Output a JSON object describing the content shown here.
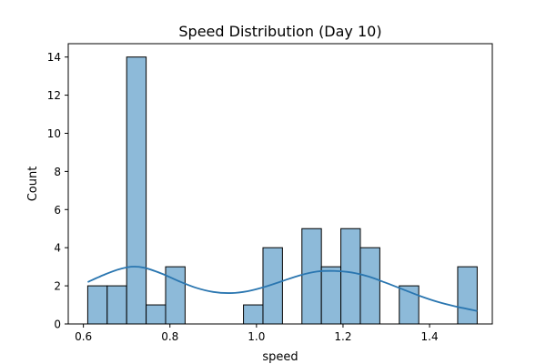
{
  "chart_data": {
    "type": "bar",
    "title": "Speed Distribution (Day 10)",
    "xlabel": "speed",
    "ylabel": "Count",
    "xlim": [
      0.565,
      1.545
    ],
    "ylim": [
      0,
      14.7
    ],
    "xticks": [
      0.6,
      0.8,
      1.0,
      1.2,
      1.4
    ],
    "xtick_labels": [
      "0.6",
      "0.8",
      "1.0",
      "1.2",
      "1.4"
    ],
    "yticks": [
      0,
      2,
      4,
      6,
      8,
      10,
      12,
      14
    ],
    "ytick_labels": [
      "0",
      "2",
      "4",
      "6",
      "8",
      "10",
      "12",
      "14"
    ],
    "grid": false,
    "bar_color": "#8dbad9",
    "bar_edge_color": "#000000",
    "kde_color": "#2a76b0",
    "bins": [
      {
        "x0": 0.61,
        "x1": 0.655,
        "count": 2
      },
      {
        "x0": 0.655,
        "x1": 0.7,
        "count": 2
      },
      {
        "x0": 0.7,
        "x1": 0.745,
        "count": 14
      },
      {
        "x0": 0.745,
        "x1": 0.79,
        "count": 1
      },
      {
        "x0": 0.79,
        "x1": 0.835,
        "count": 3
      },
      {
        "x0": 0.835,
        "x1": 0.88,
        "count": 0
      },
      {
        "x0": 0.88,
        "x1": 0.925,
        "count": 0
      },
      {
        "x0": 0.925,
        "x1": 0.97,
        "count": 0
      },
      {
        "x0": 0.97,
        "x1": 1.015,
        "count": 1
      },
      {
        "x0": 1.015,
        "x1": 1.06,
        "count": 4
      },
      {
        "x0": 1.06,
        "x1": 1.105,
        "count": 0
      },
      {
        "x0": 1.105,
        "x1": 1.15,
        "count": 5
      },
      {
        "x0": 1.15,
        "x1": 1.195,
        "count": 3
      },
      {
        "x0": 1.195,
        "x1": 1.24,
        "count": 5
      },
      {
        "x0": 1.24,
        "x1": 1.285,
        "count": 4
      },
      {
        "x0": 1.285,
        "x1": 1.33,
        "count": 0
      },
      {
        "x0": 1.33,
        "x1": 1.375,
        "count": 2
      },
      {
        "x0": 1.375,
        "x1": 1.42,
        "count": 0
      },
      {
        "x0": 1.42,
        "x1": 1.465,
        "count": 0
      },
      {
        "x0": 1.465,
        "x1": 1.51,
        "count": 3
      }
    ],
    "kde": {
      "x": [
        0.61,
        0.65,
        0.68,
        0.71,
        0.74,
        0.78,
        0.82,
        0.86,
        0.9,
        0.94,
        0.98,
        1.02,
        1.06,
        1.1,
        1.14,
        1.18,
        1.22,
        1.26,
        1.3,
        1.34,
        1.38,
        1.42,
        1.46,
        1.51
      ],
      "y": [
        2.2,
        2.6,
        2.85,
        3.0,
        2.95,
        2.65,
        2.25,
        1.9,
        1.68,
        1.62,
        1.72,
        1.95,
        2.25,
        2.55,
        2.75,
        2.78,
        2.7,
        2.48,
        2.15,
        1.8,
        1.45,
        1.15,
        0.92,
        0.68
      ]
    }
  }
}
